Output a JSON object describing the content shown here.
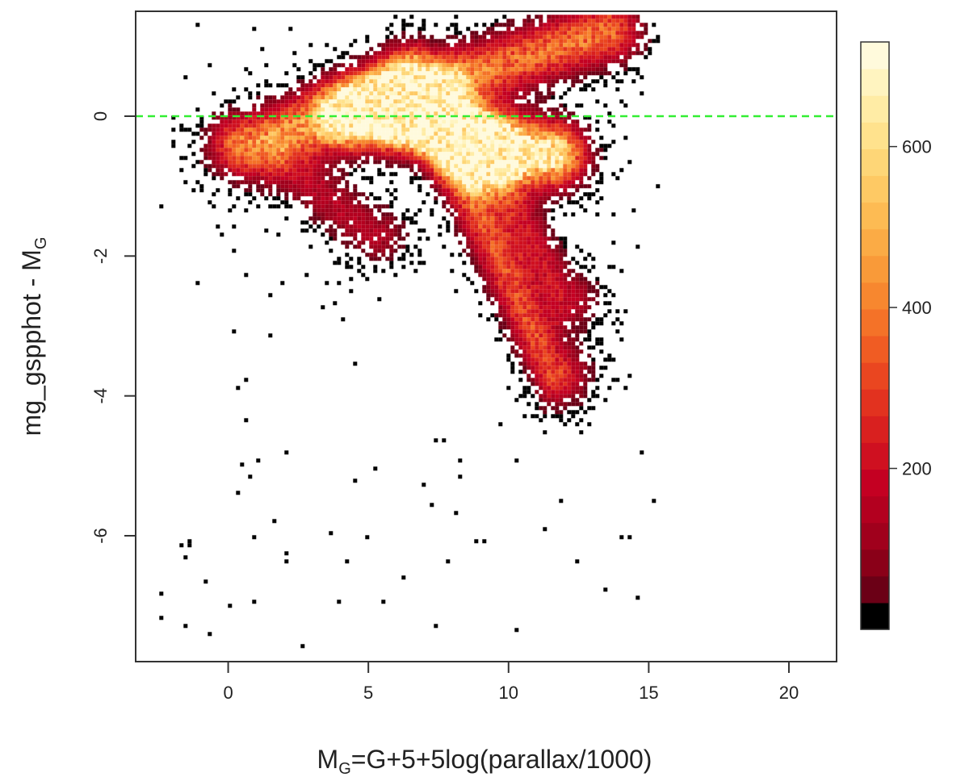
{
  "chart_data": {
    "type": "heatmap",
    "title": "",
    "xlabel_main": "M",
    "xlabel_sub": "G",
    "xlabel_rest": "=G+5+5log(parallax/1000)",
    "ylabel_main": "mg_gspphot - M",
    "ylabel_sub": "G",
    "xlim": [
      -3.3,
      21.7
    ],
    "ylim": [
      -7.8,
      1.5
    ],
    "x_ticks": [
      0,
      5,
      10,
      15,
      20
    ],
    "x_tick_labels": [
      "0",
      "5",
      "10",
      "15",
      "20"
    ],
    "y_ticks": [
      0,
      -2,
      -4,
      -6
    ],
    "y_tick_labels": [
      "0",
      "-2",
      "-4",
      "-6"
    ],
    "reference_line": {
      "y": 0,
      "color": "#33ee33",
      "style": "dashed"
    },
    "colorbar": {
      "range": [
        0,
        730
      ],
      "ticks": [
        200,
        400,
        600
      ],
      "tick_labels": [
        "200",
        "400",
        "600"
      ],
      "colors": [
        "#000000",
        "#6b0016",
        "#8a0018",
        "#a0001c",
        "#b3001f",
        "#c40022",
        "#cf1020",
        "#d9201f",
        "#e2321f",
        "#ea4620",
        "#f05c23",
        "#f47228",
        "#f7872f",
        "#f99a39",
        "#fbab45",
        "#fdbb53",
        "#fec964",
        "#fed677",
        "#ffe28d",
        "#ffeca5",
        "#fff4c0",
        "#fffadc"
      ]
    },
    "density_components": [
      {
        "name": "",
        "x": [
          0.5,
          13.5
        ],
        "y": [
          -0.4,
          1.2
        ],
        "weight": 0.6
      },
      {
        "name": "",
        "x": [
          4.5,
          6.5
        ],
        "y": [
          0.05,
          0.05
        ],
        "weight": 1.0
      },
      {
        "name": "",
        "x": [
          6.5,
          9.0
        ],
        "y": [
          0.05,
          -0.45
        ],
        "weight": 0.85
      },
      {
        "name": "",
        "x": [
          9.0,
          11.5
        ],
        "y": [
          -0.45,
          -0.55
        ],
        "weight": 1.0
      },
      {
        "name": "",
        "x": [
          6.5,
          11.6
        ],
        "y": [
          0.6,
          -3.7
        ],
        "weight": 0.5
      },
      {
        "name": "",
        "x": [
          8.0,
          12.0
        ],
        "y": [
          0.3,
          -2.6
        ],
        "weight": 0.35
      },
      {
        "name": "",
        "x": [
          2.0,
          5.2
        ],
        "y": [
          -0.7,
          -1.7
        ],
        "weight": 0.3
      }
    ]
  }
}
